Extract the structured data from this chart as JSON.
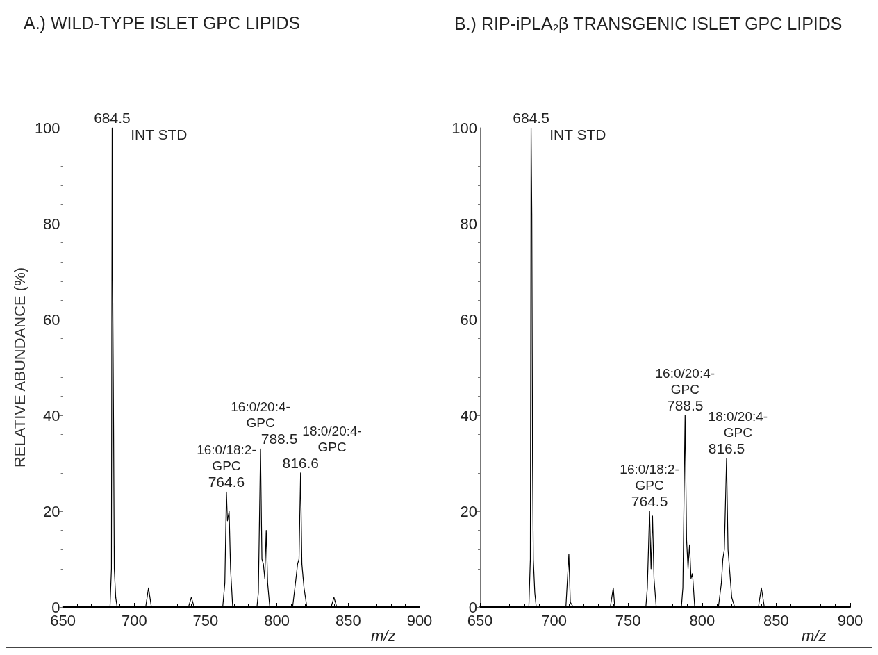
{
  "chart_data": [
    {
      "type": "line",
      "title": "A.) WILD-TYPE ISLET GPC LIPIDS",
      "ylabel": "RELATIVE ABUNDANCE (%)",
      "xlabel": "m/z",
      "marker": "none",
      "xlim": [
        650,
        900
      ],
      "xticks": [
        650,
        700,
        750,
        800,
        850,
        900
      ],
      "ylim": [
        0,
        100
      ],
      "yticks": [
        0,
        20,
        40,
        60,
        80,
        100
      ],
      "x": [
        650,
        680,
        683,
        684,
        684.5,
        685,
        685.5,
        686,
        687,
        688,
        708,
        710,
        712,
        738,
        740,
        742,
        762,
        763.5,
        764.6,
        765.3,
        766.5,
        767.5,
        769,
        786,
        787,
        788.5,
        789.5,
        790.5,
        791.5,
        792.5,
        793.5,
        795,
        811,
        813,
        814.5,
        815.5,
        816.6,
        817.5,
        819,
        821,
        838,
        840,
        842,
        900
      ],
      "series": [
        {
          "color": "#000000",
          "values": [
            0,
            0,
            0,
            8,
            100,
            62,
            38,
            8,
            2,
            0,
            0,
            4,
            0,
            0,
            2,
            0,
            0,
            5,
            24,
            18,
            20,
            8,
            0,
            0,
            3,
            33,
            10,
            9,
            6,
            16,
            5,
            0,
            0,
            5,
            9,
            10,
            28,
            9,
            4,
            0,
            0,
            2,
            0,
            0
          ]
        }
      ],
      "annotations": [
        {
          "text": "684.5",
          "x": 684.5,
          "y": 100
        },
        "INT STD",
        {
          "text": "764.6",
          "x": 764.6,
          "y": 24
        },
        {
          "text": "16:0/18:2-\nGPC",
          "x": 764.6,
          "y": 24
        },
        {
          "text": "788.5",
          "x": 788.5,
          "y": 33
        },
        {
          "text": "16:0/20:4-\nGPC",
          "x": 788.5,
          "y": 33
        },
        {
          "text": "816.6",
          "x": 816.6,
          "y": 28
        },
        {
          "text": "18:0/20:4-\nGPC",
          "x": 816.6,
          "y": 28
        }
      ]
    },
    {
      "type": "line",
      "title": "B.) RIP-iPLA$_{2}$β TRANSGENIC ISLET GPC LIPIDS",
      "xlabel": "m/z",
      "marker": "none",
      "xlim": [
        650,
        900
      ],
      "xticks": [
        650,
        700,
        750,
        800,
        850,
        900
      ],
      "ylim": [
        0,
        100
      ],
      "yticks": [
        0,
        20,
        40,
        60,
        80,
        100
      ],
      "x": [
        650,
        681,
        683,
        684,
        684.5,
        685,
        685.5,
        686,
        687,
        688,
        708,
        710,
        711,
        713,
        738,
        740,
        741,
        762,
        763,
        764.5,
        765.5,
        766.5,
        767.5,
        769,
        786,
        787,
        788.5,
        789.5,
        790.5,
        791.5,
        792.5,
        793.5,
        795,
        811,
        813,
        814,
        815,
        816.5,
        817.5,
        818.5,
        820,
        822,
        838,
        840,
        842,
        900
      ],
      "series": [
        {
          "color": "#000000",
          "values": [
            0,
            0,
            0,
            10,
            100,
            82,
            30,
            10,
            3,
            0,
            0,
            11,
            1,
            0,
            0,
            4,
            0,
            0,
            4,
            20,
            8,
            19,
            6,
            0,
            0,
            4,
            40,
            14,
            8,
            13,
            6,
            7,
            0,
            0,
            5,
            10,
            12,
            31,
            12,
            8,
            2,
            0,
            0,
            4,
            0,
            0
          ]
        }
      ],
      "annotations": [
        {
          "text": "684.5",
          "x": 684.5,
          "y": 100
        },
        "INT STD",
        {
          "text": "764.5",
          "x": 764.5,
          "y": 20
        },
        {
          "text": "16:0/18:2-\nGPC",
          "x": 764.5,
          "y": 20
        },
        {
          "text": "788.5",
          "x": 788.5,
          "y": 40
        },
        {
          "text": "16:0/20:4-\nGPC",
          "x": 788.5,
          "y": 40
        },
        {
          "text": "816.5",
          "x": 816.5,
          "y": 31
        },
        {
          "text": "18:0/20:4-\nGPC",
          "x": 816.5,
          "y": 31
        }
      ]
    }
  ]
}
